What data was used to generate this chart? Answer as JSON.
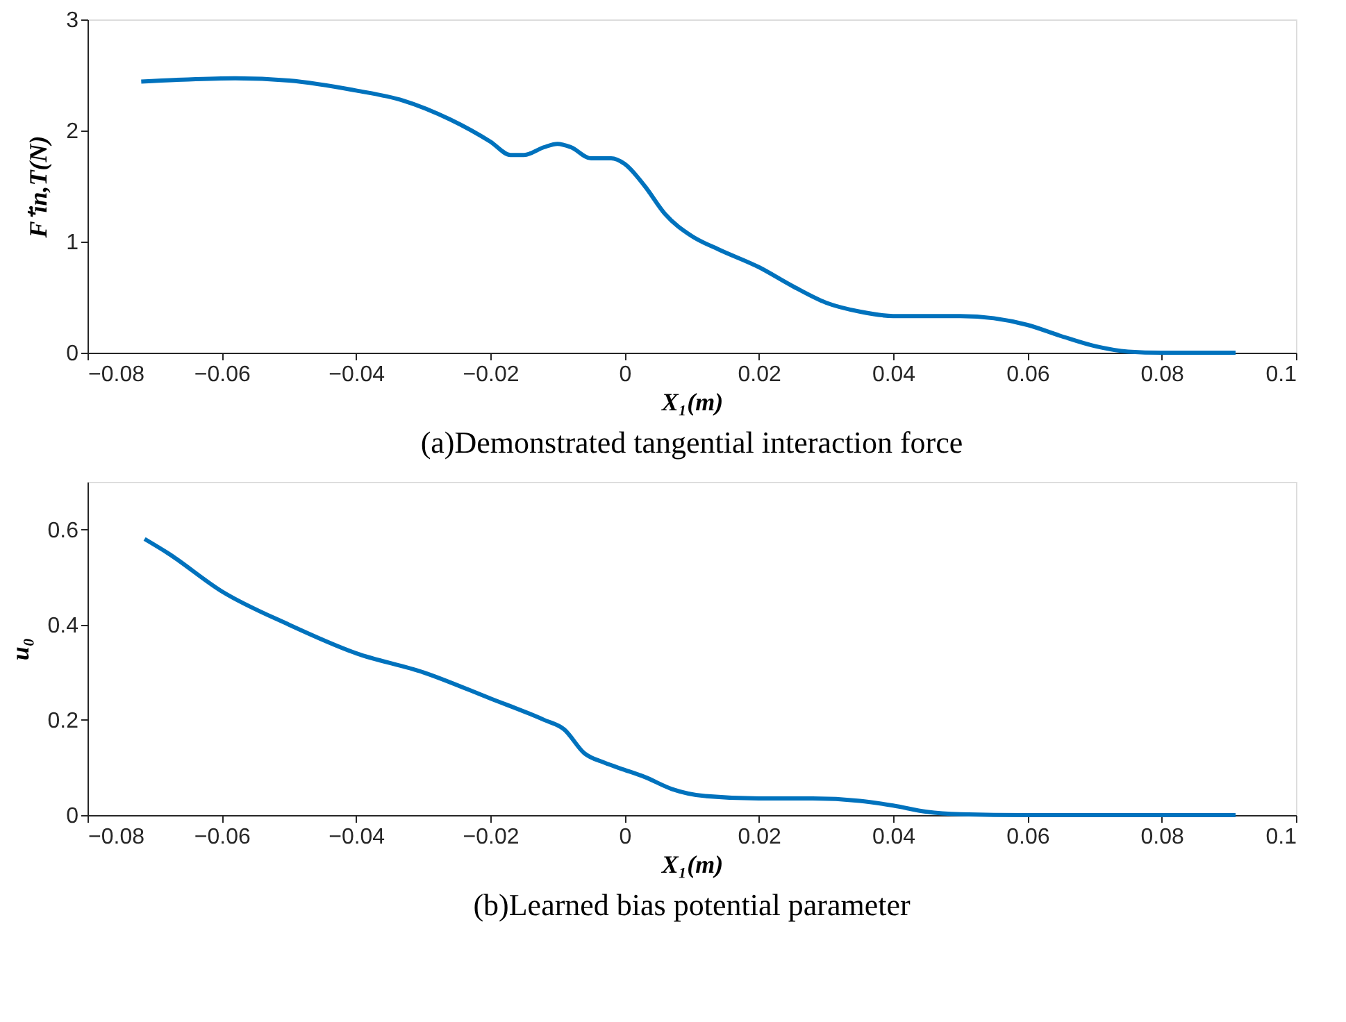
{
  "chart_data": [
    {
      "type": "line",
      "title": "(a)Demonstrated tangential interaction force",
      "xlabel": "X₁(m)",
      "ylabel": "F⁺in,T(N)",
      "xlim": [
        -0.08,
        0.1
      ],
      "xticks": [
        -0.08,
        -0.06,
        -0.04,
        -0.02,
        0,
        0.02,
        0.04,
        0.06,
        0.08,
        0.1
      ],
      "ylim": [
        0,
        3
      ],
      "yticks": [
        0,
        1,
        2,
        3
      ],
      "grid": false,
      "legend": false,
      "x": [
        -0.072,
        -0.065,
        -0.058,
        -0.05,
        -0.04,
        -0.033,
        -0.026,
        -0.02,
        -0.017,
        -0.015,
        -0.012,
        -0.01,
        -0.008,
        -0.005,
        -0.002,
        0,
        0.003,
        0.006,
        0.01,
        0.014,
        0.02,
        0.025,
        0.03,
        0.035,
        0.04,
        0.05,
        0.055,
        0.06,
        0.065,
        0.07,
        0.075,
        0.08,
        0.091
      ],
      "series": [
        {
          "color": "#0072bd",
          "values": [
            2.44,
            2.46,
            2.47,
            2.45,
            2.36,
            2.27,
            2.1,
            1.9,
            1.78,
            1.78,
            1.85,
            1.88,
            1.85,
            1.75,
            1.75,
            1.7,
            1.5,
            1.25,
            1.05,
            0.93,
            0.77,
            0.6,
            0.45,
            0.37,
            0.33,
            0.33,
            0.31,
            0.25,
            0.15,
            0.06,
            0.01,
            0,
            0
          ]
        }
      ]
    },
    {
      "type": "line",
      "title": "(b)Learned bias potential parameter",
      "xlabel": "X₁(m)",
      "ylabel": "u₀",
      "xlim": [
        -0.08,
        0.1
      ],
      "xticks": [
        -0.08,
        -0.06,
        -0.04,
        -0.02,
        0,
        0.02,
        0.04,
        0.06,
        0.08,
        0.1
      ],
      "ylim": [
        0,
        0.7
      ],
      "yticks": [
        0,
        0.2,
        0.4,
        0.6
      ],
      "grid": false,
      "legend": false,
      "x": [
        -0.0715,
        -0.068,
        -0.06,
        -0.05,
        -0.04,
        -0.03,
        -0.02,
        -0.012,
        -0.009,
        -0.006,
        -0.003,
        0,
        0.003,
        0.007,
        0.012,
        0.02,
        0.028,
        0.035,
        0.04,
        0.045,
        0.05,
        0.06,
        0.091
      ],
      "series": [
        {
          "color": "#0072bd",
          "values": [
            0.58,
            0.55,
            0.47,
            0.4,
            0.34,
            0.3,
            0.245,
            0.2,
            0.18,
            0.13,
            0.11,
            0.095,
            0.08,
            0.055,
            0.04,
            0.035,
            0.035,
            0.03,
            0.02,
            0.007,
            0.002,
            0,
            0
          ]
        }
      ]
    }
  ]
}
